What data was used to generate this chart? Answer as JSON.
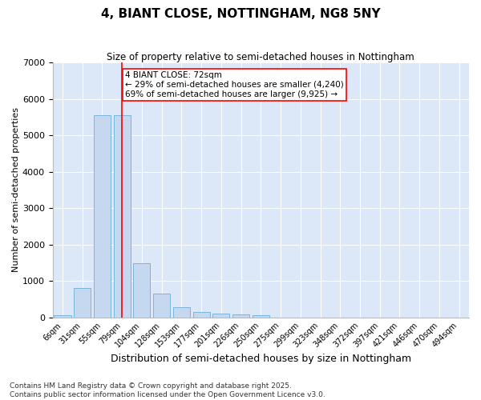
{
  "title": "4, BIANT CLOSE, NOTTINGHAM, NG8 5NY",
  "subtitle": "Size of property relative to semi-detached houses in Nottingham",
  "xlabel": "Distribution of semi-detached houses by size in Nottingham",
  "ylabel": "Number of semi-detached properties",
  "categories": [
    "6sqm",
    "31sqm",
    "55sqm",
    "79sqm",
    "104sqm",
    "128sqm",
    "153sqm",
    "177sqm",
    "201sqm",
    "226sqm",
    "250sqm",
    "275sqm",
    "299sqm",
    "323sqm",
    "348sqm",
    "372sqm",
    "397sqm",
    "421sqm",
    "446sqm",
    "470sqm",
    "494sqm"
  ],
  "values": [
    50,
    800,
    5550,
    5550,
    1490,
    660,
    270,
    155,
    95,
    70,
    60,
    0,
    0,
    0,
    0,
    0,
    0,
    0,
    0,
    0,
    0
  ],
  "bar_color": "#c5d8f0",
  "bar_edge_color": "#6baed6",
  "vline_x_index": 3.0,
  "vline_color": "red",
  "annotation_text": "4 BIANT CLOSE: 72sqm\n← 29% of semi-detached houses are smaller (4,240)\n69% of semi-detached houses are larger (9,925) →",
  "annotation_box_color": "white",
  "annotation_box_edge_color": "red",
  "background_color": "#dce8f8",
  "footer_text": "Contains HM Land Registry data © Crown copyright and database right 2025.\nContains public sector information licensed under the Open Government Licence v3.0.",
  "ylim": [
    0,
    7000
  ],
  "title_fontsize": 11,
  "subtitle_fontsize": 8.5,
  "ylabel_fontsize": 8,
  "xlabel_fontsize": 9,
  "tick_fontsize": 7,
  "footer_fontsize": 6.5,
  "annot_fontsize": 7.5
}
